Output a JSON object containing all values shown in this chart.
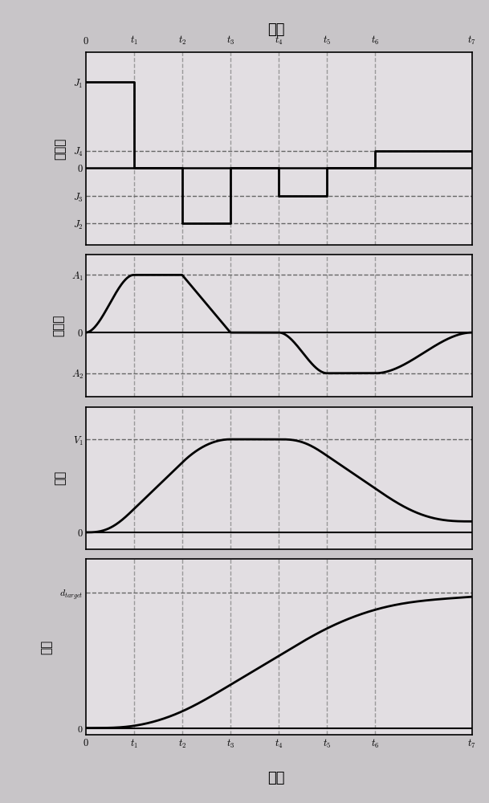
{
  "title_top": "时间",
  "title_bottom": "时间",
  "t_positions": [
    0,
    1,
    2,
    3,
    4,
    5,
    6,
    8
  ],
  "j1": 1.0,
  "j4": 0.2,
  "j3": -0.33,
  "j2": -0.65,
  "a1": 0.85,
  "a2": -0.6,
  "background_color": "#c8c5c8",
  "plot_bg_color": "#e2dee2",
  "line_color": "#000000",
  "dashed_color": "#666666",
  "grid_color": "#888888",
  "ylabel_jerk": "急动度",
  "ylabel_accel": "加速度",
  "ylabel_vel": "速度",
  "ylabel_pos": "位移"
}
